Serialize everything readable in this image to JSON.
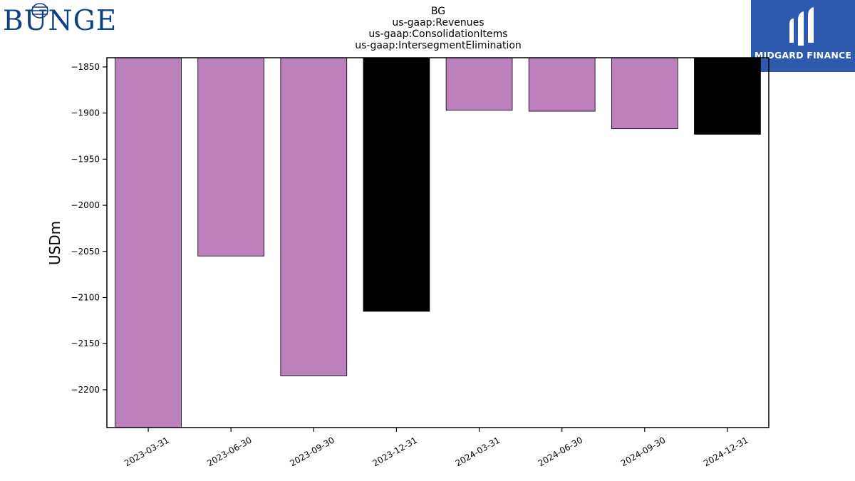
{
  "logos": {
    "left": "BUNGE",
    "right": "MIDGARD FINANCE"
  },
  "colors": {
    "bar_default": "#bc80bd",
    "bar_highlight": "#000000",
    "logo_left": "#0f3f85",
    "logo_right_bg": "#2d5aad"
  },
  "chart_data": {
    "type": "bar",
    "title_lines": [
      "BG",
      "us-gaap:Revenues",
      "us-gaap:ConsolidationItems",
      "us-gaap:IntersegmentElimination"
    ],
    "xlabel": "",
    "ylabel": "USDm",
    "categories": [
      "2023-03-31",
      "2023-06-30",
      "2023-09-30",
      "2023-12-31",
      "2024-03-31",
      "2024-06-30",
      "2024-09-30",
      "2024-12-31"
    ],
    "values": [
      -2241,
      -2055,
      -2185,
      -2115,
      -1897,
      -1898,
      -1917,
      -1923
    ],
    "bar_colors": [
      "#bc80bd",
      "#bc80bd",
      "#bc80bd",
      "#000000",
      "#bc80bd",
      "#bc80bd",
      "#bc80bd",
      "#000000"
    ],
    "ylim": [
      -2241,
      -1840
    ],
    "yticks": [
      -1850,
      -1900,
      -1950,
      -2000,
      -2050,
      -2100,
      -2150,
      -2200
    ],
    "ytick_labels": [
      "−1850",
      "−1900",
      "−1950",
      "−2000",
      "−2050",
      "−2100",
      "−2150",
      "−2200"
    ],
    "grid": false,
    "legend": "none"
  }
}
